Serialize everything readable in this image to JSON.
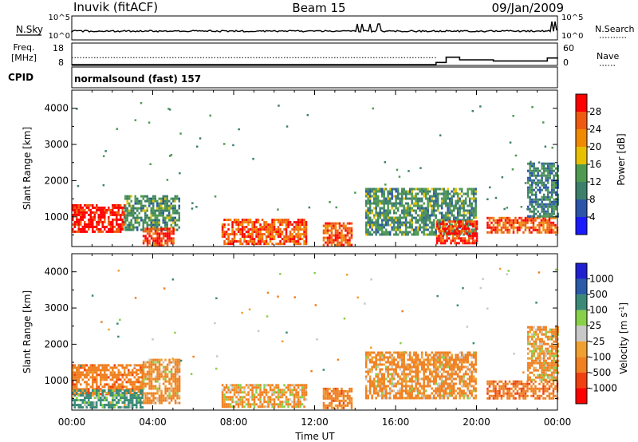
{
  "header": {
    "station": "Inuvik (fitACF)",
    "beam": "Beam 15",
    "date": "09/Jan/2009"
  },
  "sky_panel": {
    "left_label": "N.Sky",
    "left_tick_top": "10^5",
    "left_tick_bottom": "10^0",
    "right_label": "N.Search",
    "right_tick_top": "10^5",
    "right_tick_bottom": "10^0"
  },
  "freq_panel": {
    "left_label_1": "Freq.",
    "left_label_2": "[MHz]",
    "left_tick_top": "18",
    "left_tick_bottom": "8",
    "right_label": "Nave",
    "right_tick_top": "60",
    "right_tick_bottom": "0"
  },
  "cpid": {
    "label": "CPID",
    "value": "normalsound (fast) 157"
  },
  "colors": {
    "power_scale": [
      "#1a1aff",
      "#2a55a8",
      "#3d7f6a",
      "#4f9a50",
      "#e8c000",
      "#f08a00",
      "#f05a10",
      "#ff0000"
    ],
    "velocity_scale": [
      "#ff0000",
      "#f04010",
      "#f08020",
      "#f0a030",
      "#c8c8c8",
      "#88d048",
      "#3b8a78",
      "#2a5aa8",
      "#2020d0"
    ],
    "trace": "#000000",
    "axis": "#000000"
  },
  "chart_data": [
    {
      "type": "line",
      "title": "",
      "xlabel": "",
      "ylabel": "N.Sky",
      "y2label": "N.Search",
      "x": [
        "00:00",
        "04:00",
        "08:00",
        "12:00",
        "16:00",
        "20:00",
        "00:00"
      ],
      "ylim": [
        "10^0",
        "10^5"
      ],
      "series": [
        {
          "name": "N.Sky",
          "y_level": "~10^3",
          "note": "spikes near 14:00-15:00 and 23:30"
        },
        {
          "name": "N.Search",
          "style": "dotted"
        }
      ]
    },
    {
      "type": "line",
      "title": "",
      "ylabel": "Freq. [MHz]",
      "y2label": "Nave",
      "ylim": [
        8,
        18
      ],
      "y2lim": [
        0,
        60
      ],
      "series": [
        {
          "name": "Freq.",
          "style": "dotted",
          "x": [
            "00:00",
            "18:00",
            "24:00"
          ],
          "values": [
            11.5,
            11.5,
            11.5
          ]
        },
        {
          "name": "Nave",
          "x": [
            "00:00",
            "18:00",
            "18:30",
            "19:10",
            "20:50",
            "23:30",
            "24:00"
          ],
          "values": [
            2,
            8,
            22,
            15,
            12,
            20,
            18
          ]
        }
      ]
    },
    {
      "type": "heatmap",
      "title": "",
      "xlabel": "",
      "ylabel": "Slant Range [km]",
      "colorbar_label": "Power [dB]",
      "colorbar_ticks": [
        "4",
        "8",
        "12",
        "16",
        "20",
        "24",
        "28"
      ],
      "ylim": [
        180,
        4500
      ],
      "yticks": [
        "1000",
        "2000",
        "3000",
        "4000"
      ],
      "regions": [
        {
          "t0": 0.0,
          "t1": 2.6,
          "r0": 600,
          "r1": 1350,
          "power_db": 28
        },
        {
          "t0": 2.6,
          "t1": 5.3,
          "r0": 650,
          "r1": 1600,
          "power_db": 10
        },
        {
          "t0": 3.5,
          "t1": 5.0,
          "r0": 180,
          "r1": 700,
          "power_db": 26
        },
        {
          "t0": 7.4,
          "t1": 11.6,
          "r0": 250,
          "r1": 950,
          "power_db": 24
        },
        {
          "t0": 12.4,
          "t1": 13.8,
          "r0": 250,
          "r1": 850,
          "power_db": 24
        },
        {
          "t0": 14.5,
          "t1": 20.0,
          "r0": 500,
          "r1": 1800,
          "power_db": 10
        },
        {
          "t0": 18.0,
          "t1": 20.0,
          "r0": 250,
          "r1": 900,
          "power_db": 26
        },
        {
          "t0": 20.5,
          "t1": 24.0,
          "r0": 600,
          "r1": 1000,
          "power_db": 24
        },
        {
          "t0": 22.5,
          "t1": 24.0,
          "r0": 1000,
          "r1": 2500,
          "power_db": 8
        }
      ]
    },
    {
      "type": "heatmap",
      "title": "",
      "xlabel": "Time UT",
      "ylabel": "Slant Range [km]",
      "colorbar_label": "Velocity [m s^-1]",
      "colorbar_ticks": [
        "-1000",
        "-500",
        "-100",
        "-25",
        "25",
        "100",
        "500",
        "1000"
      ],
      "ylim": [
        180,
        4500
      ],
      "yticks": [
        "1000",
        "2000",
        "3000",
        "4000"
      ],
      "x": [
        "00:00",
        "04:00",
        "08:00",
        "12:00",
        "16:00",
        "20:00",
        "00:00"
      ],
      "regions": [
        {
          "t0": 0.0,
          "t1": 3.5,
          "r0": 650,
          "r1": 1450,
          "velocity": -300
        },
        {
          "t0": 0.0,
          "t1": 3.5,
          "r0": 250,
          "r1": 750,
          "velocity": 200
        },
        {
          "t0": 3.5,
          "t1": 5.3,
          "r0": 400,
          "r1": 1600,
          "velocity": -200
        },
        {
          "t0": 7.4,
          "t1": 11.6,
          "r0": 250,
          "r1": 900,
          "velocity": -150
        },
        {
          "t0": 12.4,
          "t1": 13.8,
          "r0": 250,
          "r1": 800,
          "velocity": -300
        },
        {
          "t0": 14.5,
          "t1": 20.0,
          "r0": 500,
          "r1": 1800,
          "velocity": -200
        },
        {
          "t0": 20.5,
          "t1": 24.0,
          "r0": 500,
          "r1": 1000,
          "velocity": -400
        },
        {
          "t0": 22.5,
          "t1": 24.0,
          "r0": 1000,
          "r1": 2500,
          "velocity": -150
        }
      ]
    }
  ]
}
